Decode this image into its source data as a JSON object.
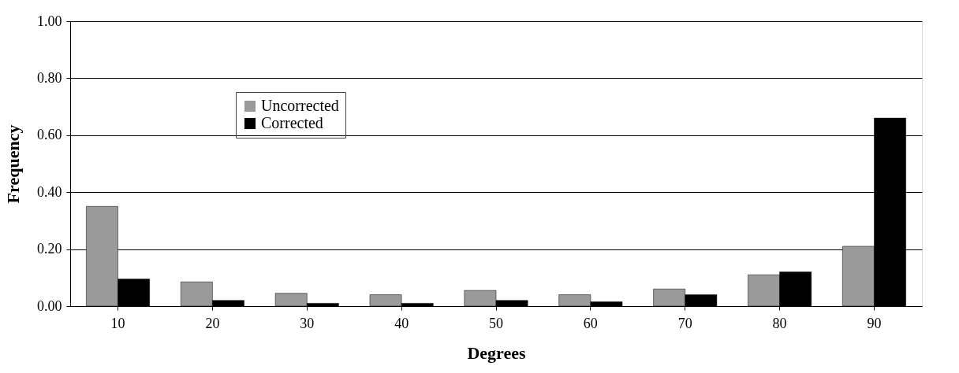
{
  "chart_data": {
    "type": "bar",
    "xlabel": "Degrees",
    "ylabel": "Frequency",
    "categories": [
      "10",
      "20",
      "30",
      "40",
      "50",
      "60",
      "70",
      "80",
      "90"
    ],
    "series": [
      {
        "name": "Uncorrected",
        "color": "#9a9a9a",
        "values": [
          0.35,
          0.085,
          0.045,
          0.04,
          0.055,
          0.04,
          0.06,
          0.11,
          0.21
        ]
      },
      {
        "name": "Corrected",
        "color": "#000000",
        "values": [
          0.095,
          0.02,
          0.01,
          0.01,
          0.02,
          0.015,
          0.04,
          0.12,
          0.66
        ]
      }
    ],
    "ylim": [
      0,
      1
    ],
    "yticks": [
      {
        "value": 0,
        "label": "0.00"
      },
      {
        "value": 0.2,
        "label": "0.20"
      },
      {
        "value": 0.4,
        "label": "0.40"
      },
      {
        "value": 0.6,
        "label": "0.60"
      },
      {
        "value": 0.8,
        "label": "0.80"
      },
      {
        "value": 1,
        "label": "1.00"
      }
    ],
    "grid": "y",
    "legend": "top left"
  }
}
